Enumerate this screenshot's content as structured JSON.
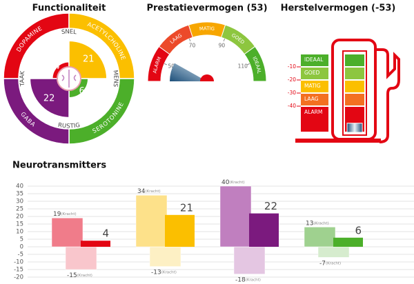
{
  "chart_data": [
    {
      "type": "polar",
      "title": "Functionaliteit",
      "categories": [
        "DOPAMINE",
        "ACETYLCHOLINE",
        "SEROTONINE",
        "GABA"
      ],
      "inner_labels": [
        "SNEL",
        "MENS",
        "RUSTIG",
        "TAAK"
      ],
      "values": [
        4,
        21,
        6,
        22
      ],
      "colors": [
        "#e30613",
        "#fbbf00",
        "#4caf2a",
        "#7b1a7e"
      ],
      "rlim": [
        0,
        25
      ]
    },
    {
      "type": "gauge",
      "title": "Prestatievermogen (53)",
      "categories": [
        "ALARM",
        "LAAG",
        "MATIG",
        "GOED",
        "IDEAAL"
      ],
      "colors": [
        "#e30613",
        "#ec4a2a",
        "#f7a600",
        "#8dc63f",
        "#4caf2a"
      ],
      "value": 53,
      "lim": [
        40,
        120
      ],
      "ticks": [
        50,
        70,
        90,
        110
      ]
    },
    {
      "type": "tank",
      "title": "Herstelvermogen (-53)",
      "categories": [
        "IDEAAL",
        "GOED",
        "MATIG",
        "LAAG",
        "ALARM"
      ],
      "colors": [
        "#4caf2a",
        "#8dc63f",
        "#fbbf00",
        "#f37021",
        "#e30613"
      ],
      "value": -53,
      "ylim": [
        -60,
        0
      ],
      "yticks": [
        -10,
        -20,
        -30,
        -40
      ]
    },
    {
      "type": "bar",
      "title": "Neurotransmitters",
      "categories": [
        null,
        null,
        null,
        null
      ],
      "series": [
        {
          "values": [
            19,
            34,
            40,
            13
          ],
          "colors": [
            "#f07c8a",
            "#fde18a",
            "#c07fbf",
            "#9fd18f"
          ],
          "note": "(Kracht)"
        },
        {
          "values": [
            4,
            21,
            22,
            6
          ],
          "colors": [
            "#e30613",
            "#fbbf00",
            "#7b1a7e",
            "#4caf2a"
          ]
        },
        {
          "values": [
            -15,
            -13,
            -18,
            -7
          ],
          "colors": [
            "#f9c6cc",
            "#fdf0c4",
            "#e4c6e2",
            "#d6ecce"
          ],
          "note": "(Kracht)"
        }
      ],
      "ylim": [
        -20,
        40
      ],
      "yticks": [
        -20,
        -15,
        -10,
        -5,
        0,
        5,
        10,
        15,
        20,
        25,
        30,
        35,
        40
      ],
      "grid": true
    }
  ]
}
